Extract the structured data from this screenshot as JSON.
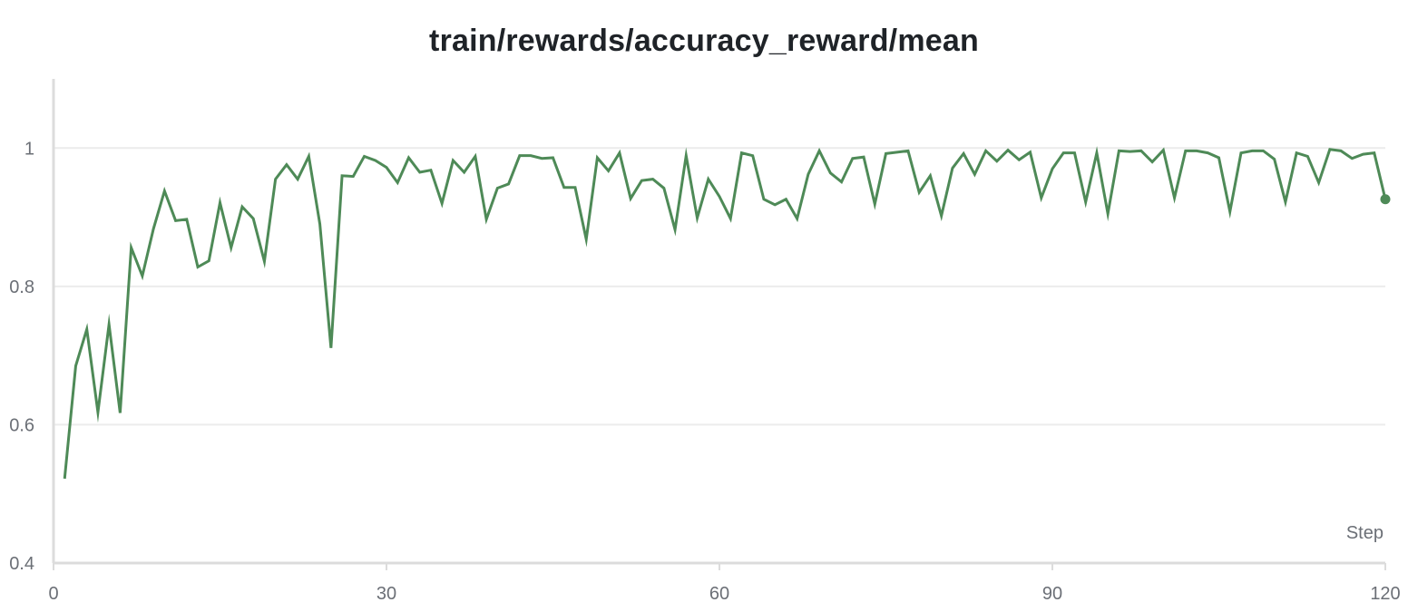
{
  "chart_data": {
    "type": "line",
    "title": "train/rewards/accuracy_reward/mean",
    "xlabel": "Step",
    "ylabel": "",
    "xlim": [
      0,
      120
    ],
    "ylim": [
      0.4,
      1.1
    ],
    "x_ticks": [
      0,
      30,
      60,
      90,
      120
    ],
    "y_ticks": [
      0.4,
      0.6,
      0.8,
      1
    ],
    "y_tick_labels": [
      "0.4",
      "0.6",
      "0.8",
      "1"
    ],
    "x_tick_labels": [
      "0",
      "30",
      "60",
      "90",
      "120"
    ],
    "grid": true,
    "legend": "none",
    "colors": {
      "line": "#4e8a57",
      "grid": "#ececec",
      "axis": "#dcdcdc"
    },
    "series": [
      {
        "x": [
          1,
          2,
          3,
          4,
          5,
          6,
          7,
          8,
          9,
          10,
          11,
          12,
          13,
          14,
          15,
          16,
          17,
          18,
          19,
          20,
          21,
          22,
          23,
          24,
          25,
          26,
          27,
          28,
          29,
          30,
          31,
          32,
          33,
          34,
          35,
          36,
          37,
          38,
          39,
          40,
          41,
          42,
          43,
          44,
          45,
          46,
          47,
          48,
          49,
          50,
          51,
          52,
          53,
          54,
          55,
          56,
          57,
          58,
          59,
          60,
          61,
          62,
          63,
          64,
          65,
          66,
          67,
          68,
          69,
          70,
          71,
          72,
          73,
          74,
          75,
          76,
          77,
          78,
          79,
          80,
          81,
          82,
          83,
          84,
          85,
          86,
          87,
          88,
          89,
          90,
          91,
          92,
          93,
          94,
          95,
          96,
          97,
          98,
          99,
          100,
          101,
          102,
          103,
          104,
          105,
          106,
          107,
          108,
          109,
          110,
          111,
          112,
          113,
          114,
          115,
          116,
          117,
          118,
          119,
          120
        ],
        "values": [
          0.522,
          0.685,
          0.738,
          0.618,
          0.745,
          0.617,
          0.856,
          0.815,
          0.883,
          0.938,
          0.895,
          0.897,
          0.828,
          0.837,
          0.921,
          0.856,
          0.915,
          0.898,
          0.836,
          0.955,
          0.976,
          0.955,
          0.988,
          0.89,
          0.711,
          0.96,
          0.959,
          0.988,
          0.982,
          0.972,
          0.95,
          0.986,
          0.965,
          0.968,
          0.92,
          0.982,
          0.965,
          0.988,
          0.897,
          0.942,
          0.948,
          0.989,
          0.989,
          0.985,
          0.986,
          0.943,
          0.943,
          0.868,
          0.986,
          0.967,
          0.993,
          0.927,
          0.953,
          0.955,
          0.942,
          0.882,
          0.989,
          0.899,
          0.955,
          0.93,
          0.898,
          0.993,
          0.989,
          0.926,
          0.918,
          0.926,
          0.898,
          0.962,
          0.996,
          0.964,
          0.951,
          0.985,
          0.987,
          0.919,
          0.992,
          0.994,
          0.996,
          0.936,
          0.96,
          0.902,
          0.971,
          0.992,
          0.962,
          0.996,
          0.981,
          0.997,
          0.983,
          0.994,
          0.928,
          0.97,
          0.993,
          0.993,
          0.922,
          0.993,
          0.905,
          0.996,
          0.995,
          0.996,
          0.98,
          0.997,
          0.928,
          0.996,
          0.996,
          0.993,
          0.986,
          0.908,
          0.993,
          0.996,
          0.996,
          0.984,
          0.922,
          0.993,
          0.988,
          0.95,
          0.998,
          0.996,
          0.985,
          0.991,
          0.993,
          0.926
        ]
      }
    ]
  }
}
